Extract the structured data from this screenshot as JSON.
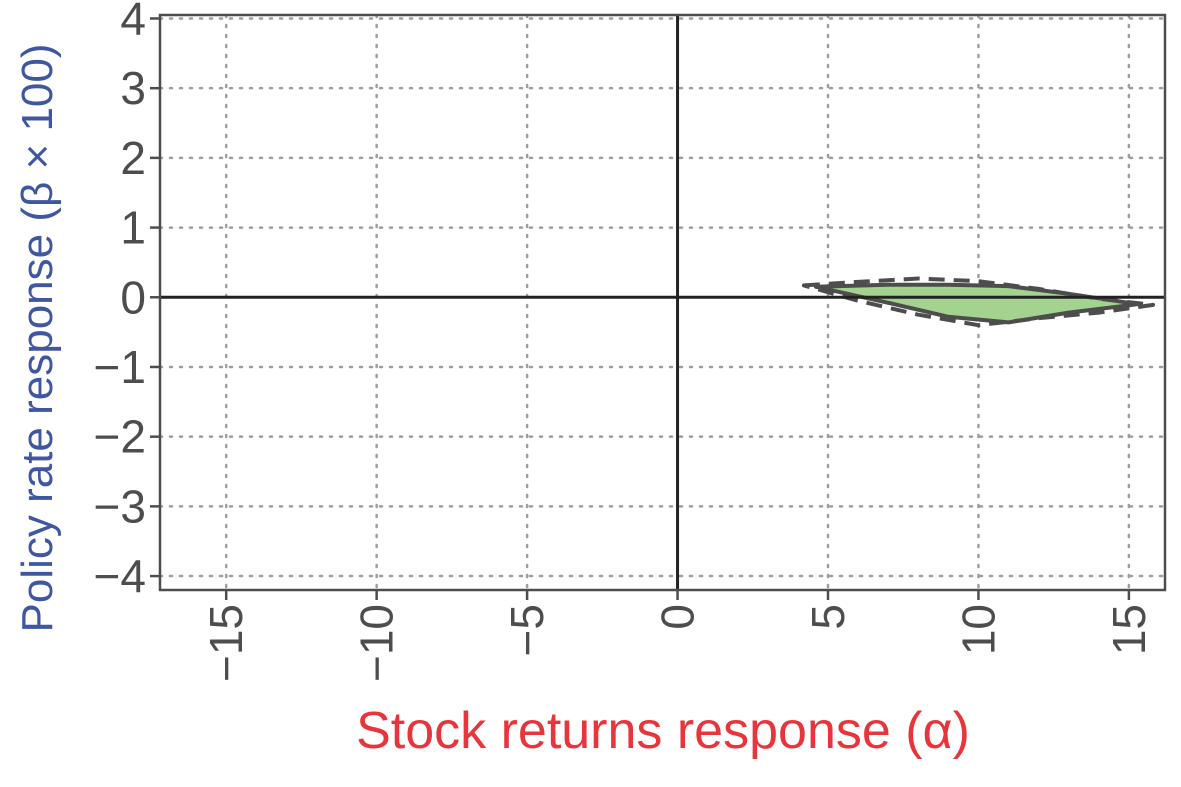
{
  "colors": {
    "xlabel": "#e8353b",
    "ylabel": "#3f57a0",
    "region_fill": "#a3d38e",
    "region_stroke": "#4d4d4d",
    "grid": "#9e9e9e",
    "axis": "#222222",
    "frame": "#4d4d4d"
  },
  "chart_data": {
    "type": "area",
    "xlabel": "Stock returns response (α)",
    "ylabel": "Policy rate response (β × 100)",
    "xlim": [
      -17.2,
      16.2
    ],
    "ylim": [
      -4.2,
      4.05
    ],
    "xticks": [
      -15,
      -10,
      -5,
      0,
      5,
      10,
      15
    ],
    "yticks": [
      -4,
      -3,
      -2,
      -1,
      0,
      1,
      2,
      3,
      4
    ],
    "xtick_labels": [
      "−15",
      "−10",
      "−5",
      "0",
      "5",
      "10",
      "15"
    ],
    "ytick_labels": [
      "−4",
      "−3",
      "−2",
      "−1",
      "0",
      "1",
      "2",
      "3",
      "4"
    ],
    "grid": true,
    "grid_style": "dotted",
    "reference_lines": {
      "x": 0,
      "y": 0
    },
    "series": [
      {
        "style": "filled-solid",
        "points": [
          [
            4.6,
            0.15
          ],
          [
            7,
            0.18
          ],
          [
            9,
            0.18
          ],
          [
            11,
            0.16
          ],
          [
            13,
            0.05
          ],
          [
            15.3,
            -0.1
          ],
          [
            13,
            -0.22
          ],
          [
            11,
            -0.36
          ],
          [
            9,
            -0.28
          ],
          [
            7,
            -0.08
          ],
          [
            4.6,
            0.15
          ]
        ]
      },
      {
        "style": "dashed",
        "points": [
          [
            4.2,
            0.17
          ],
          [
            6,
            0.22
          ],
          [
            8,
            0.27
          ],
          [
            10,
            0.23
          ],
          [
            12,
            0.12
          ],
          [
            14,
            -0.02
          ],
          [
            15.8,
            -0.11
          ],
          [
            14,
            -0.22
          ],
          [
            12,
            -0.3
          ],
          [
            10,
            -0.4
          ],
          [
            8,
            -0.25
          ],
          [
            6,
            -0.05
          ],
          [
            4.2,
            0.17
          ]
        ]
      }
    ]
  }
}
